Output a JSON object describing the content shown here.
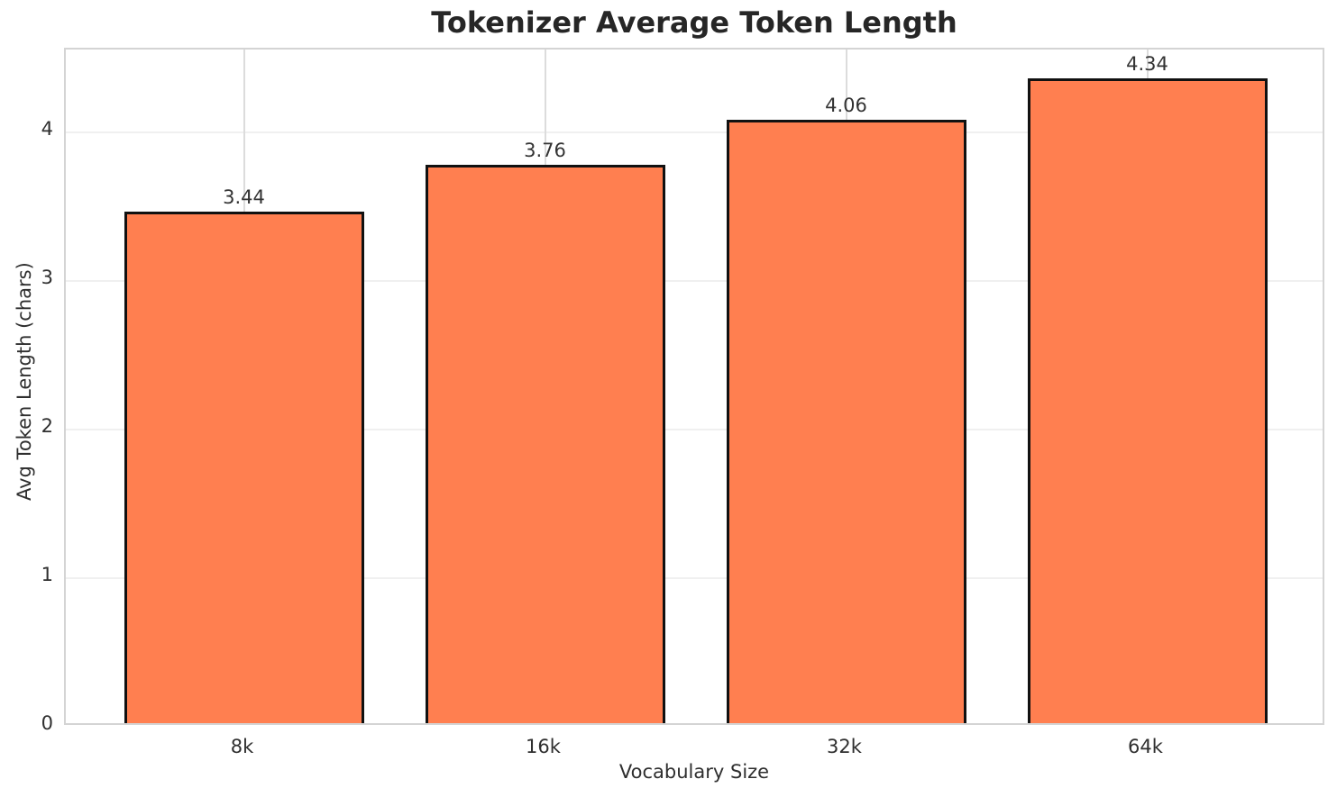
{
  "chart_data": {
    "type": "bar",
    "title": "Tokenizer Average Token Length",
    "xlabel": "Vocabulary Size",
    "ylabel": "Avg Token Length (chars)",
    "categories": [
      "8k",
      "16k",
      "32k",
      "64k"
    ],
    "values": [
      3.44,
      3.76,
      4.06,
      4.34
    ],
    "value_labels": [
      "3.44",
      "3.76",
      "4.06",
      "4.34"
    ],
    "yticks": [
      0,
      1,
      2,
      3,
      4
    ],
    "ylim": [
      0,
      4.558
    ],
    "grid": true,
    "legend": "none",
    "bar_color": "#FF7F50",
    "bar_edge_color": "#111111",
    "grid_color_horizontal": "#f0f0f0",
    "grid_color_vertical": "#dcdcdc",
    "spine_color": "#d4d4d4",
    "text_color": "#2f2f2f"
  }
}
